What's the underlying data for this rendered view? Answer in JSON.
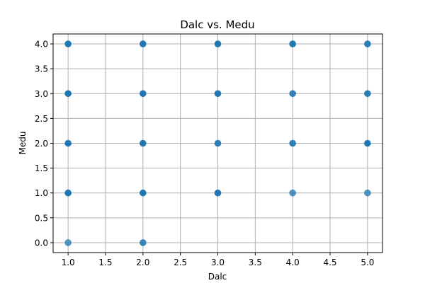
{
  "chart_data": {
    "type": "scatter",
    "title": "Dalc vs. Medu",
    "xlabel": "Dalc",
    "ylabel": "Medu",
    "xlim": [
      0.8,
      5.2
    ],
    "ylim": [
      -0.2,
      4.2
    ],
    "xticks": [
      "1.0",
      "1.5",
      "2.0",
      "2.5",
      "3.0",
      "3.5",
      "4.0",
      "4.5",
      "5.0"
    ],
    "yticks": [
      "0.0",
      "0.5",
      "1.0",
      "1.5",
      "2.0",
      "2.5",
      "3.0",
      "3.5",
      "4.0"
    ],
    "grid": true,
    "series": [
      {
        "color": "#1f77b4",
        "points": [
          {
            "x": 1,
            "y": 0,
            "intensity": 0.6
          },
          {
            "x": 1,
            "y": 1,
            "intensity": 1.0
          },
          {
            "x": 1,
            "y": 2,
            "intensity": 1.0
          },
          {
            "x": 1,
            "y": 3,
            "intensity": 1.0
          },
          {
            "x": 1,
            "y": 4,
            "intensity": 1.0
          },
          {
            "x": 2,
            "y": 0,
            "intensity": 0.8
          },
          {
            "x": 2,
            "y": 1,
            "intensity": 1.0
          },
          {
            "x": 2,
            "y": 2,
            "intensity": 1.0
          },
          {
            "x": 2,
            "y": 3,
            "intensity": 1.0
          },
          {
            "x": 2,
            "y": 4,
            "intensity": 1.0
          },
          {
            "x": 3,
            "y": 1,
            "intensity": 1.0
          },
          {
            "x": 3,
            "y": 2,
            "intensity": 0.9
          },
          {
            "x": 3,
            "y": 3,
            "intensity": 1.0
          },
          {
            "x": 3,
            "y": 4,
            "intensity": 1.0
          },
          {
            "x": 4,
            "y": 1,
            "intensity": 0.65
          },
          {
            "x": 4,
            "y": 2,
            "intensity": 0.9
          },
          {
            "x": 4,
            "y": 3,
            "intensity": 0.85
          },
          {
            "x": 4,
            "y": 4,
            "intensity": 1.0
          },
          {
            "x": 5,
            "y": 1,
            "intensity": 0.65
          },
          {
            "x": 5,
            "y": 2,
            "intensity": 1.0
          },
          {
            "x": 5,
            "y": 3,
            "intensity": 0.9
          },
          {
            "x": 5,
            "y": 4,
            "intensity": 0.9
          }
        ]
      }
    ]
  }
}
